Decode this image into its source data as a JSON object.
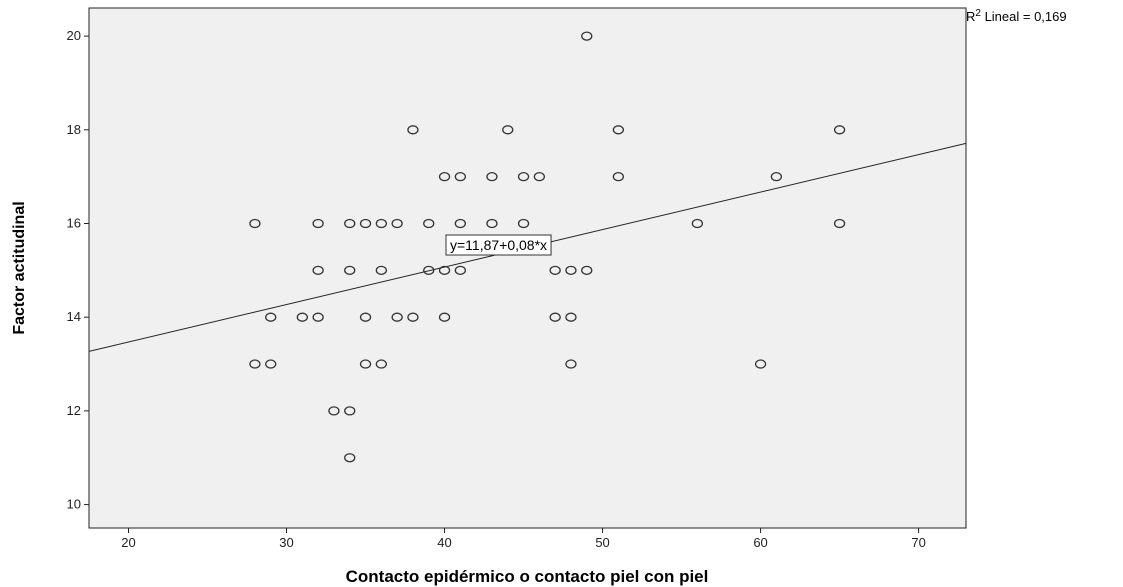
{
  "chart_data": {
    "type": "scatter",
    "xlabel": "Contacto epidérmico o contacto piel con piel",
    "ylabel": "Factor actitudinal",
    "xlim": [
      17.5,
      73
    ],
    "ylim": [
      9.5,
      20.6
    ],
    "x_ticks": [
      20,
      30,
      40,
      50,
      60,
      70
    ],
    "y_ticks": [
      10,
      12,
      14,
      16,
      18,
      20
    ],
    "grid": false,
    "background_color": "#f0f0f0",
    "marker_color": "#333333",
    "points": [
      {
        "x": 49,
        "y": 20
      },
      {
        "x": 38,
        "y": 18
      },
      {
        "x": 44,
        "y": 18
      },
      {
        "x": 51,
        "y": 18
      },
      {
        "x": 65,
        "y": 18
      },
      {
        "x": 40,
        "y": 17
      },
      {
        "x": 41,
        "y": 17
      },
      {
        "x": 43,
        "y": 17
      },
      {
        "x": 45,
        "y": 17
      },
      {
        "x": 46,
        "y": 17
      },
      {
        "x": 51,
        "y": 17
      },
      {
        "x": 61,
        "y": 17
      },
      {
        "x": 28,
        "y": 16
      },
      {
        "x": 32,
        "y": 16
      },
      {
        "x": 34,
        "y": 16
      },
      {
        "x": 35,
        "y": 16
      },
      {
        "x": 36,
        "y": 16
      },
      {
        "x": 37,
        "y": 16
      },
      {
        "x": 39,
        "y": 16
      },
      {
        "x": 41,
        "y": 16
      },
      {
        "x": 43,
        "y": 16
      },
      {
        "x": 45,
        "y": 16
      },
      {
        "x": 56,
        "y": 16
      },
      {
        "x": 65,
        "y": 16
      },
      {
        "x": 32,
        "y": 15
      },
      {
        "x": 34,
        "y": 15
      },
      {
        "x": 36,
        "y": 15
      },
      {
        "x": 39,
        "y": 15
      },
      {
        "x": 40,
        "y": 15
      },
      {
        "x": 41,
        "y": 15
      },
      {
        "x": 47,
        "y": 15
      },
      {
        "x": 48,
        "y": 15
      },
      {
        "x": 49,
        "y": 15
      },
      {
        "x": 29,
        "y": 14
      },
      {
        "x": 31,
        "y": 14
      },
      {
        "x": 32,
        "y": 14
      },
      {
        "x": 35,
        "y": 14
      },
      {
        "x": 37,
        "y": 14
      },
      {
        "x": 38,
        "y": 14
      },
      {
        "x": 40,
        "y": 14
      },
      {
        "x": 47,
        "y": 14
      },
      {
        "x": 48,
        "y": 14
      },
      {
        "x": 28,
        "y": 13
      },
      {
        "x": 29,
        "y": 13
      },
      {
        "x": 35,
        "y": 13
      },
      {
        "x": 36,
        "y": 13
      },
      {
        "x": 48,
        "y": 13
      },
      {
        "x": 60,
        "y": 13
      },
      {
        "x": 33,
        "y": 12
      },
      {
        "x": 34,
        "y": 12
      },
      {
        "x": 34,
        "y": 11
      }
    ],
    "fit_line": {
      "intercept": 11.87,
      "slope": 0.08
    },
    "equation_label": "y=11,87+0,08*x",
    "r2_label": {
      "base": "R",
      "sup": "2",
      "rest": " Lineal = 0,169"
    }
  }
}
